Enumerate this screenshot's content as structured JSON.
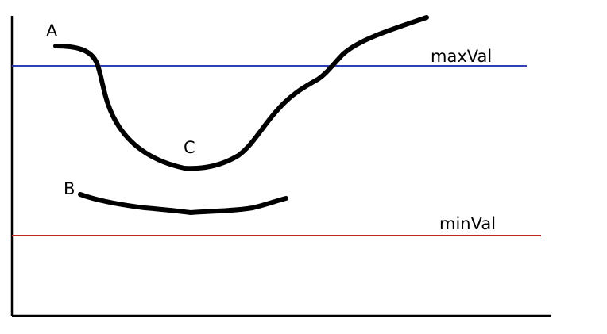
{
  "thresholds": {
    "max": {
      "label": "maxVal",
      "color": "#2f3fb8"
    },
    "min": {
      "label": "minVal",
      "color": "#c0272d"
    }
  },
  "points": {
    "a": {
      "label": "A"
    },
    "b": {
      "label": "B"
    },
    "c": {
      "label": "C"
    }
  },
  "colors": {
    "curve": "#000000",
    "axis": "#000000",
    "background": "#ffffff"
  }
}
